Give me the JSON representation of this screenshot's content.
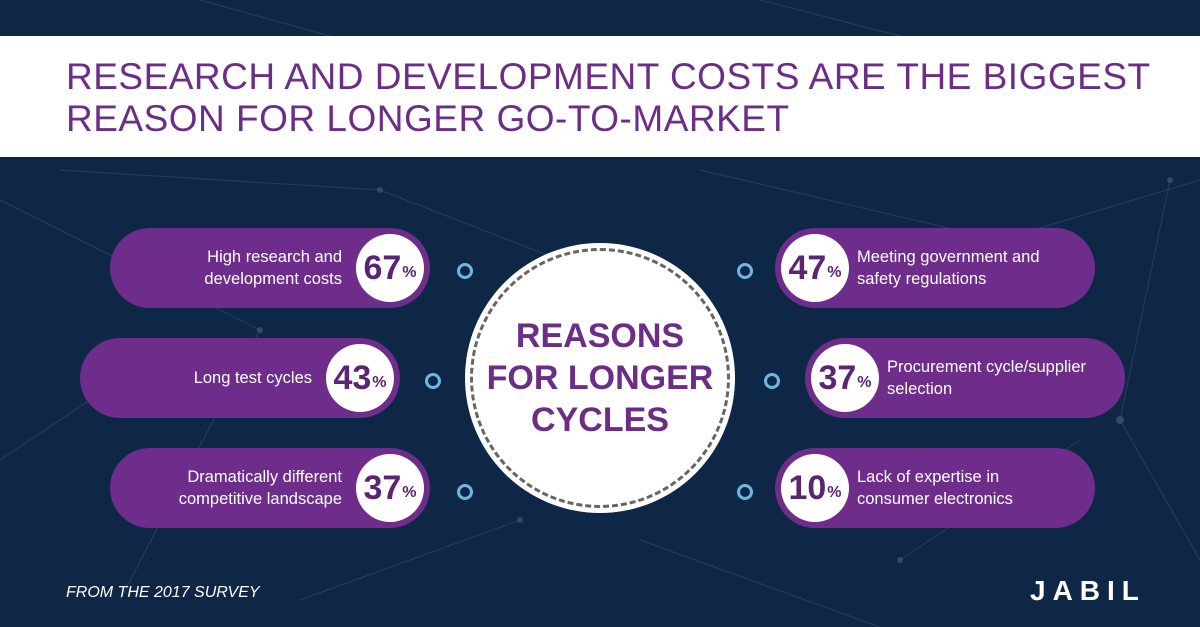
{
  "title": [
    "RESEARCH AND DEVELOPMENT COSTS ARE THE BIGGEST",
    "REASON FOR LONGER GO-TO-MARKET"
  ],
  "center": [
    "REASONS",
    "FOR LONGER",
    "CYCLES"
  ],
  "unit": "%",
  "items": [
    {
      "label": [
        "High research and",
        "development costs"
      ],
      "value": 67
    },
    {
      "label": [
        "Long test cycles"
      ],
      "value": 43
    },
    {
      "label": [
        "Dramatically different",
        "competitive landscape"
      ],
      "value": 37
    },
    {
      "label": [
        "Meeting government and",
        "safety regulations"
      ],
      "value": 47
    },
    {
      "label": [
        "Procurement cycle/supplier",
        "selection"
      ],
      "value": 37
    },
    {
      "label": [
        "Lack of expertise in",
        "consumer electronics"
      ],
      "value": 10
    }
  ],
  "footer": "FROM THE 2017 SURVEY",
  "logo": "JABIL"
}
